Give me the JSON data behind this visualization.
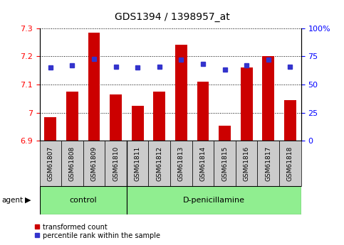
{
  "title": "GDS1394 / 1398957_at",
  "samples": [
    "GSM61807",
    "GSM61808",
    "GSM61809",
    "GSM61810",
    "GSM61811",
    "GSM61812",
    "GSM61813",
    "GSM61814",
    "GSM61815",
    "GSM61816",
    "GSM61817",
    "GSM61818"
  ],
  "bar_values": [
    6.985,
    7.075,
    7.285,
    7.065,
    7.025,
    7.075,
    7.24,
    7.11,
    6.955,
    7.16,
    7.2,
    7.045
  ],
  "percentile_values": [
    65,
    67,
    73,
    66,
    65,
    66,
    72,
    68,
    63,
    67,
    72,
    66
  ],
  "ymin": 6.9,
  "ymax": 7.3,
  "ytick_vals": [
    6.9,
    7.0,
    7.1,
    7.2,
    7.3
  ],
  "ytick_labels": [
    "6.9",
    "7",
    "7.1",
    "7.2",
    "7.3"
  ],
  "right_ytick_vals": [
    0,
    25,
    50,
    75,
    100
  ],
  "right_ytick_labels": [
    "0",
    "25",
    "50",
    "75",
    "100%"
  ],
  "bar_color": "#cc0000",
  "dot_color": "#3333cc",
  "bar_width": 0.55,
  "control_samples": 4,
  "control_label": "control",
  "treatment_label": "D-penicillamine",
  "agent_label": "agent",
  "legend_bar_label": "transformed count",
  "legend_dot_label": "percentile rank within the sample",
  "group_fill": "#90EE90",
  "tick_bg": "#cccccc",
  "title_fontsize": 10,
  "axis_fontsize": 8,
  "tick_fontsize": 6.5,
  "group_fontsize": 8,
  "legend_fontsize": 7
}
